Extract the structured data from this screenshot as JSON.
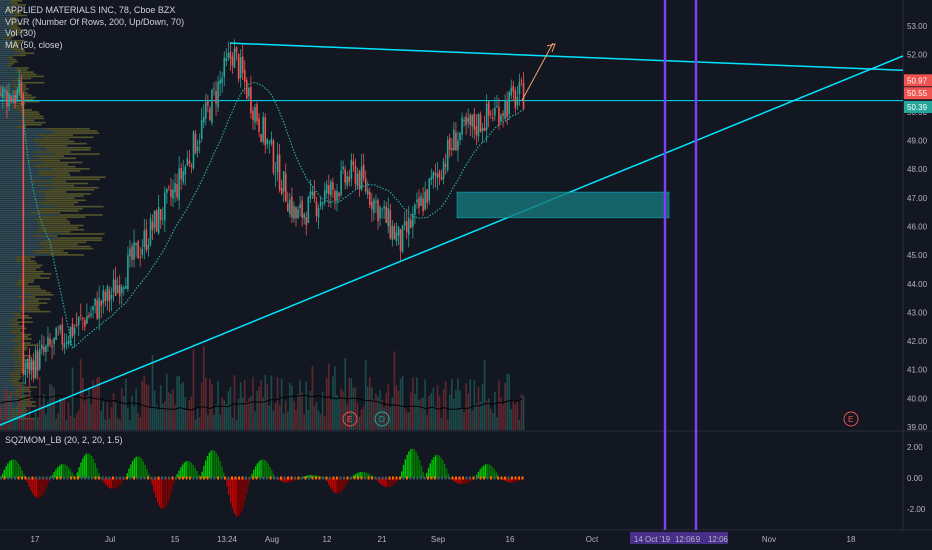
{
  "header": {
    "line1": "APPLIED MATERIALS INC, 78, Cboe BZX",
    "line2": "VPVR (Number Of Rows, 200, Up/Down, 70)",
    "line3": "Vol (30)",
    "line4": "MA (50, close)"
  },
  "indicator": {
    "label": "SQZMOM_LB (20, 2, 20, 1.5)"
  },
  "colors": {
    "background": "#131722",
    "up": "#26a69a",
    "down": "#ef5350",
    "trendline": "#00e5ff",
    "vertical_line": "#7e3ff2",
    "box": "#17787d",
    "ma": "#26a69a",
    "mom_up": "#00c800",
    "mom_down": "#c80000",
    "arrow": "#f0a070"
  },
  "chart_data": {
    "type": "candlestick",
    "symbol": "APPLIED MATERIALS INC",
    "interval": "78",
    "exchange": "Cboe BZX",
    "y_ticks": [
      "53.00",
      "52.00",
      "51.00",
      "50.00",
      "49.00",
      "48.00",
      "47.00",
      "46.00",
      "45.00",
      "44.00",
      "43.00",
      "42.00",
      "41.00",
      "40.00",
      "39.00"
    ],
    "ylim": [
      39,
      53.6
    ],
    "price_labels": [
      {
        "text": "50.97",
        "color": "#ef5350"
      },
      {
        "text": "50.55",
        "color": "#ef5350"
      },
      {
        "text": "50.39",
        "color": "#26a69a"
      }
    ],
    "x_ticks": [
      "17",
      "Jul",
      "15",
      "13:24",
      "Aug",
      "12",
      "21",
      "Sep",
      "16",
      "Oct",
      "14 Oct '19",
      "12:06",
      "9",
      "12:06",
      "Nov",
      "18"
    ],
    "events": [
      "E",
      "D",
      "E"
    ],
    "horizontal_level": 50.39,
    "price_path": [
      {
        "x": "17",
        "y": 40.9
      },
      {
        "x": "Jul",
        "y": 43.6
      },
      {
        "x": "15",
        "y": 47.3
      },
      {
        "x": "13:24",
        "y": 52.1
      },
      {
        "x": "Aug",
        "y": 46.3
      },
      {
        "x": "12",
        "y": 47.9
      },
      {
        "x": "21",
        "y": 45.4
      },
      {
        "x": "Sep",
        "y": 49.1
      },
      {
        "x": "16",
        "y": 50.6
      }
    ],
    "ma": {
      "name": "MA (50, close)",
      "from": 42.0,
      "peak": 50.2,
      "end": 50.3
    },
    "momentum": {
      "label": "SQZMOM_LB (20, 2, 20, 1.5)",
      "y_ticks": [
        "2.00",
        "0.00",
        "-2.00"
      ],
      "ylim": [
        -2.9,
        2.7
      ],
      "waves": [
        1.2,
        -1.3,
        0.9,
        1.6,
        -0.7,
        1.4,
        -2.0,
        1.1,
        1.8,
        -2.5,
        1.2,
        -0.3,
        0.2,
        -1.0,
        0.4,
        -0.6,
        1.9,
        1.5,
        -0.4,
        0.9,
        -0.3
      ]
    },
    "volume": {
      "label": "Vol (30)"
    }
  }
}
